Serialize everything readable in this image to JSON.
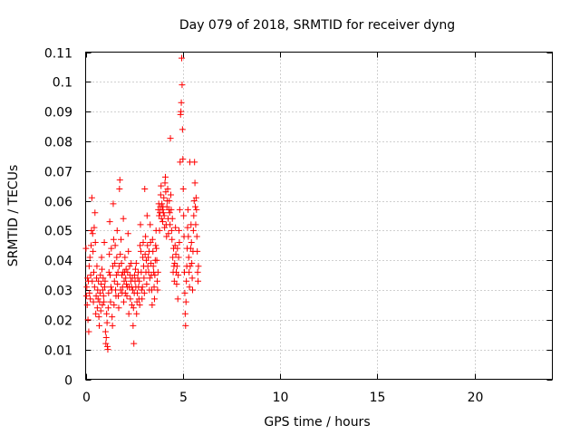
{
  "chart_data": {
    "type": "scatter",
    "title": "Day 079 of 2018, SRMTID for receiver dyng",
    "xlabel": "GPS time / hours",
    "ylabel": "SRMTID / TECUs",
    "xlim": [
      0,
      24
    ],
    "ylim": [
      0,
      0.11
    ],
    "xticks": [
      0,
      5,
      10,
      15,
      20
    ],
    "xtick_labels": [
      "0",
      "5",
      "10",
      "15",
      "20"
    ],
    "yticks": [
      0,
      0.01,
      0.02,
      0.03,
      0.04,
      0.05,
      0.06,
      0.07,
      0.08,
      0.09,
      0.1,
      0.11
    ],
    "ytick_labels": [
      "0",
      "0.01",
      "0.02",
      "0.03",
      "0.04",
      "0.05",
      "0.06",
      "0.07",
      "0.08",
      "0.09",
      "0.1",
      "0.11"
    ],
    "grid": true,
    "marker": "plus",
    "color": "#ff0000",
    "series": [
      {
        "name": "SRMTID",
        "points": [
          [
            0.02,
            0.044
          ],
          [
            0.04,
            0.028
          ],
          [
            0.06,
            0.031
          ],
          [
            0.08,
            0.025
          ],
          [
            0.1,
            0.034
          ],
          [
            0.12,
            0.02
          ],
          [
            0.14,
            0.033
          ],
          [
            0.16,
            0.016
          ],
          [
            0.18,
            0.038
          ],
          [
            0.2,
            0.029
          ],
          [
            0.22,
            0.041
          ],
          [
            0.24,
            0.027
          ],
          [
            0.26,
            0.035
          ],
          [
            0.28,
            0.045
          ],
          [
            0.3,
            0.05
          ],
          [
            0.32,
            0.061
          ],
          [
            0.34,
            0.033
          ],
          [
            0.36,
            0.049
          ],
          [
            0.38,
            0.043
          ],
          [
            0.4,
            0.026
          ],
          [
            0.42,
            0.036
          ],
          [
            0.44,
            0.051
          ],
          [
            0.46,
            0.031
          ],
          [
            0.48,
            0.056
          ],
          [
            0.5,
            0.046
          ],
          [
            0.52,
            0.022
          ],
          [
            0.54,
            0.028
          ],
          [
            0.56,
            0.034
          ],
          [
            0.58,
            0.038
          ],
          [
            0.6,
            0.024
          ],
          [
            0.62,
            0.03
          ],
          [
            0.64,
            0.027
          ],
          [
            0.66,
            0.033
          ],
          [
            0.68,
            0.021
          ],
          [
            0.7,
            0.018
          ],
          [
            0.72,
            0.026
          ],
          [
            0.74,
            0.029
          ],
          [
            0.76,
            0.035
          ],
          [
            0.78,
            0.023
          ],
          [
            0.8,
            0.032
          ],
          [
            0.82,
            0.041
          ],
          [
            0.84,
            0.037
          ],
          [
            0.86,
            0.025
          ],
          [
            0.88,
            0.03
          ],
          [
            0.9,
            0.034
          ],
          [
            0.92,
            0.028
          ],
          [
            0.94,
            0.026
          ],
          [
            0.96,
            0.046
          ],
          [
            0.98,
            0.031
          ],
          [
            1.0,
            0.033
          ],
          [
            1.02,
            0.016
          ],
          [
            1.04,
            0.012
          ],
          [
            1.06,
            0.014
          ],
          [
            1.08,
            0.022
          ],
          [
            1.1,
            0.019
          ],
          [
            1.12,
            0.011
          ],
          [
            1.14,
            0.01
          ],
          [
            1.16,
            0.024
          ],
          [
            1.18,
            0.029
          ],
          [
            1.2,
            0.036
          ],
          [
            1.22,
            0.042
          ],
          [
            1.24,
            0.053
          ],
          [
            1.26,
            0.035
          ],
          [
            1.28,
            0.026
          ],
          [
            1.3,
            0.031
          ],
          [
            1.32,
            0.044
          ],
          [
            1.34,
            0.03
          ],
          [
            1.36,
            0.021
          ],
          [
            1.38,
            0.018
          ],
          [
            1.4,
            0.038
          ],
          [
            1.42,
            0.059
          ],
          [
            1.44,
            0.047
          ],
          [
            1.46,
            0.025
          ],
          [
            1.48,
            0.033
          ],
          [
            1.5,
            0.039
          ],
          [
            1.52,
            0.045
          ],
          [
            1.54,
            0.03
          ],
          [
            1.56,
            0.028
          ],
          [
            1.58,
            0.035
          ],
          [
            1.6,
            0.041
          ],
          [
            1.62,
            0.05
          ],
          [
            1.64,
            0.032
          ],
          [
            1.66,
            0.036
          ],
          [
            1.68,
            0.028
          ],
          [
            1.7,
            0.024
          ],
          [
            1.72,
            0.038
          ],
          [
            1.74,
            0.064
          ],
          [
            1.76,
            0.067
          ],
          [
            1.78,
            0.042
          ],
          [
            1.8,
            0.03
          ],
          [
            1.82,
            0.047
          ],
          [
            1.84,
            0.039
          ],
          [
            1.86,
            0.035
          ],
          [
            1.88,
            0.029
          ],
          [
            1.9,
            0.031
          ],
          [
            1.92,
            0.036
          ],
          [
            1.94,
            0.054
          ],
          [
            1.96,
            0.026
          ],
          [
            1.98,
            0.033
          ],
          [
            2.0,
            0.036
          ],
          [
            2.02,
            0.041
          ],
          [
            2.04,
            0.029
          ],
          [
            2.06,
            0.034
          ],
          [
            2.08,
            0.037
          ],
          [
            2.1,
            0.032
          ],
          [
            2.12,
            0.028
          ],
          [
            2.14,
            0.031
          ],
          [
            2.16,
            0.036
          ],
          [
            2.18,
            0.049
          ],
          [
            2.2,
            0.043
          ],
          [
            2.22,
            0.022
          ],
          [
            2.24,
            0.031
          ],
          [
            2.26,
            0.038
          ],
          [
            2.28,
            0.035
          ],
          [
            2.3,
            0.027
          ],
          [
            2.32,
            0.033
          ],
          [
            2.34,
            0.039
          ],
          [
            2.36,
            0.031
          ],
          [
            2.38,
            0.025
          ],
          [
            2.4,
            0.034
          ],
          [
            2.42,
            0.03
          ],
          [
            2.44,
            0.018
          ],
          [
            2.46,
            0.024
          ],
          [
            2.48,
            0.012
          ],
          [
            2.5,
            0.029
          ],
          [
            2.52,
            0.035
          ],
          [
            2.54,
            0.033
          ],
          [
            2.56,
            0.037
          ],
          [
            2.58,
            0.031
          ],
          [
            2.6,
            0.039
          ],
          [
            2.62,
            0.022
          ],
          [
            2.64,
            0.026
          ],
          [
            2.66,
            0.029
          ],
          [
            2.68,
            0.034
          ],
          [
            2.7,
            0.036
          ],
          [
            2.72,
            0.031
          ],
          [
            2.74,
            0.027
          ],
          [
            2.76,
            0.033
          ],
          [
            2.78,
            0.025
          ],
          [
            2.8,
            0.045
          ],
          [
            2.82,
            0.052
          ],
          [
            2.84,
            0.043
          ],
          [
            2.86,
            0.036
          ],
          [
            2.88,
            0.03
          ],
          [
            2.9,
            0.027
          ],
          [
            2.92,
            0.031
          ],
          [
            2.94,
            0.041
          ],
          [
            2.96,
            0.046
          ],
          [
            2.98,
            0.038
          ],
          [
            3.0,
            0.034
          ],
          [
            3.02,
            0.029
          ],
          [
            3.04,
            0.064
          ],
          [
            3.06,
            0.042
          ],
          [
            3.08,
            0.048
          ],
          [
            3.1,
            0.036
          ],
          [
            3.12,
            0.04
          ],
          [
            3.14,
            0.032
          ],
          [
            3.16,
            0.055
          ],
          [
            3.18,
            0.045
          ],
          [
            3.2,
            0.038
          ],
          [
            3.22,
            0.041
          ],
          [
            3.24,
            0.036
          ],
          [
            3.26,
            0.043
          ],
          [
            3.28,
            0.03
          ],
          [
            3.3,
            0.034
          ],
          [
            3.32,
            0.052
          ],
          [
            3.34,
            0.046
          ],
          [
            3.36,
            0.039
          ],
          [
            3.38,
            0.035
          ],
          [
            3.4,
            0.03
          ],
          [
            3.42,
            0.025
          ],
          [
            3.44,
            0.047
          ],
          [
            3.46,
            0.043
          ],
          [
            3.48,
            0.038
          ],
          [
            3.5,
            0.036
          ],
          [
            3.52,
            0.031
          ],
          [
            3.54,
            0.027
          ],
          [
            3.56,
            0.035
          ],
          [
            3.58,
            0.04
          ],
          [
            3.6,
            0.045
          ],
          [
            3.62,
            0.05
          ],
          [
            3.64,
            0.044
          ],
          [
            3.66,
            0.04
          ],
          [
            3.68,
            0.033
          ],
          [
            3.7,
            0.03
          ],
          [
            3.72,
            0.036
          ],
          [
            3.74,
            0.057
          ],
          [
            3.76,
            0.059
          ],
          [
            3.78,
            0.055
          ],
          [
            3.8,
            0.05
          ],
          [
            3.82,
            0.056
          ],
          [
            3.84,
            0.058
          ],
          [
            3.86,
            0.062
          ],
          [
            3.88,
            0.065
          ],
          [
            3.9,
            0.054
          ],
          [
            3.92,
            0.059
          ],
          [
            3.94,
            0.057
          ],
          [
            3.96,
            0.053
          ],
          [
            3.98,
            0.058
          ],
          [
            4.0,
            0.056
          ],
          [
            4.02,
            0.061
          ],
          [
            4.04,
            0.055
          ],
          [
            4.06,
            0.051
          ],
          [
            4.08,
            0.066
          ],
          [
            4.1,
            0.068
          ],
          [
            4.12,
            0.063
          ],
          [
            4.14,
            0.052
          ],
          [
            4.16,
            0.048
          ],
          [
            4.18,
            0.058
          ],
          [
            4.2,
            0.06
          ],
          [
            4.22,
            0.064
          ],
          [
            4.24,
            0.054
          ],
          [
            4.26,
            0.049
          ],
          [
            4.28,
            0.057
          ],
          [
            4.3,
            0.06
          ],
          [
            4.32,
            0.056
          ],
          [
            4.34,
            0.052
          ],
          [
            4.36,
            0.081
          ],
          [
            4.38,
            0.062
          ],
          [
            4.4,
            0.057
          ],
          [
            4.42,
            0.05
          ],
          [
            4.44,
            0.047
          ],
          [
            4.46,
            0.054
          ],
          [
            4.48,
            0.041
          ],
          [
            4.5,
            0.036
          ],
          [
            4.52,
            0.044
          ],
          [
            4.54,
            0.038
          ],
          [
            4.56,
            0.033
          ],
          [
            4.58,
            0.039
          ],
          [
            4.6,
            0.045
          ],
          [
            4.62,
            0.051
          ],
          [
            4.64,
            0.042
          ],
          [
            4.66,
            0.036
          ],
          [
            4.68,
            0.032
          ],
          [
            4.7,
            0.038
          ],
          [
            4.72,
            0.044
          ],
          [
            4.74,
            0.027
          ],
          [
            4.76,
            0.035
          ],
          [
            4.78,
            0.041
          ],
          [
            4.8,
            0.05
          ],
          [
            4.82,
            0.046
          ],
          [
            4.84,
            0.057
          ],
          [
            4.86,
            0.073
          ],
          [
            4.88,
            0.089
          ],
          [
            4.9,
            0.09
          ],
          [
            4.92,
            0.093
          ],
          [
            4.94,
            0.108
          ],
          [
            4.96,
            0.099
          ],
          [
            4.98,
            0.084
          ],
          [
            5.0,
            0.074
          ],
          [
            5.02,
            0.064
          ],
          [
            5.04,
            0.055
          ],
          [
            5.06,
            0.048
          ],
          [
            5.08,
            0.036
          ],
          [
            5.1,
            0.029
          ],
          [
            5.12,
            0.022
          ],
          [
            5.14,
            0.018
          ],
          [
            5.16,
            0.026
          ],
          [
            5.18,
            0.033
          ],
          [
            5.2,
            0.038
          ],
          [
            5.22,
            0.044
          ],
          [
            5.24,
            0.051
          ],
          [
            5.26,
            0.057
          ],
          [
            5.28,
            0.048
          ],
          [
            5.3,
            0.041
          ],
          [
            5.32,
            0.036
          ],
          [
            5.34,
            0.031
          ],
          [
            5.36,
            0.073
          ],
          [
            5.38,
            0.038
          ],
          [
            5.4,
            0.044
          ],
          [
            5.42,
            0.052
          ],
          [
            5.44,
            0.046
          ],
          [
            5.46,
            0.039
          ],
          [
            5.48,
            0.034
          ],
          [
            5.5,
            0.03
          ],
          [
            5.52,
            0.043
          ],
          [
            5.54,
            0.05
          ],
          [
            5.56,
            0.055
          ],
          [
            5.58,
            0.06
          ],
          [
            5.6,
            0.073
          ],
          [
            5.62,
            0.066
          ],
          [
            5.64,
            0.058
          ],
          [
            5.66,
            0.052
          ],
          [
            5.68,
            0.061
          ],
          [
            5.7,
            0.057
          ],
          [
            5.72,
            0.048
          ],
          [
            5.74,
            0.043
          ],
          [
            5.76,
            0.036
          ],
          [
            5.78,
            0.033
          ],
          [
            5.8,
            0.038
          ]
        ]
      }
    ]
  }
}
